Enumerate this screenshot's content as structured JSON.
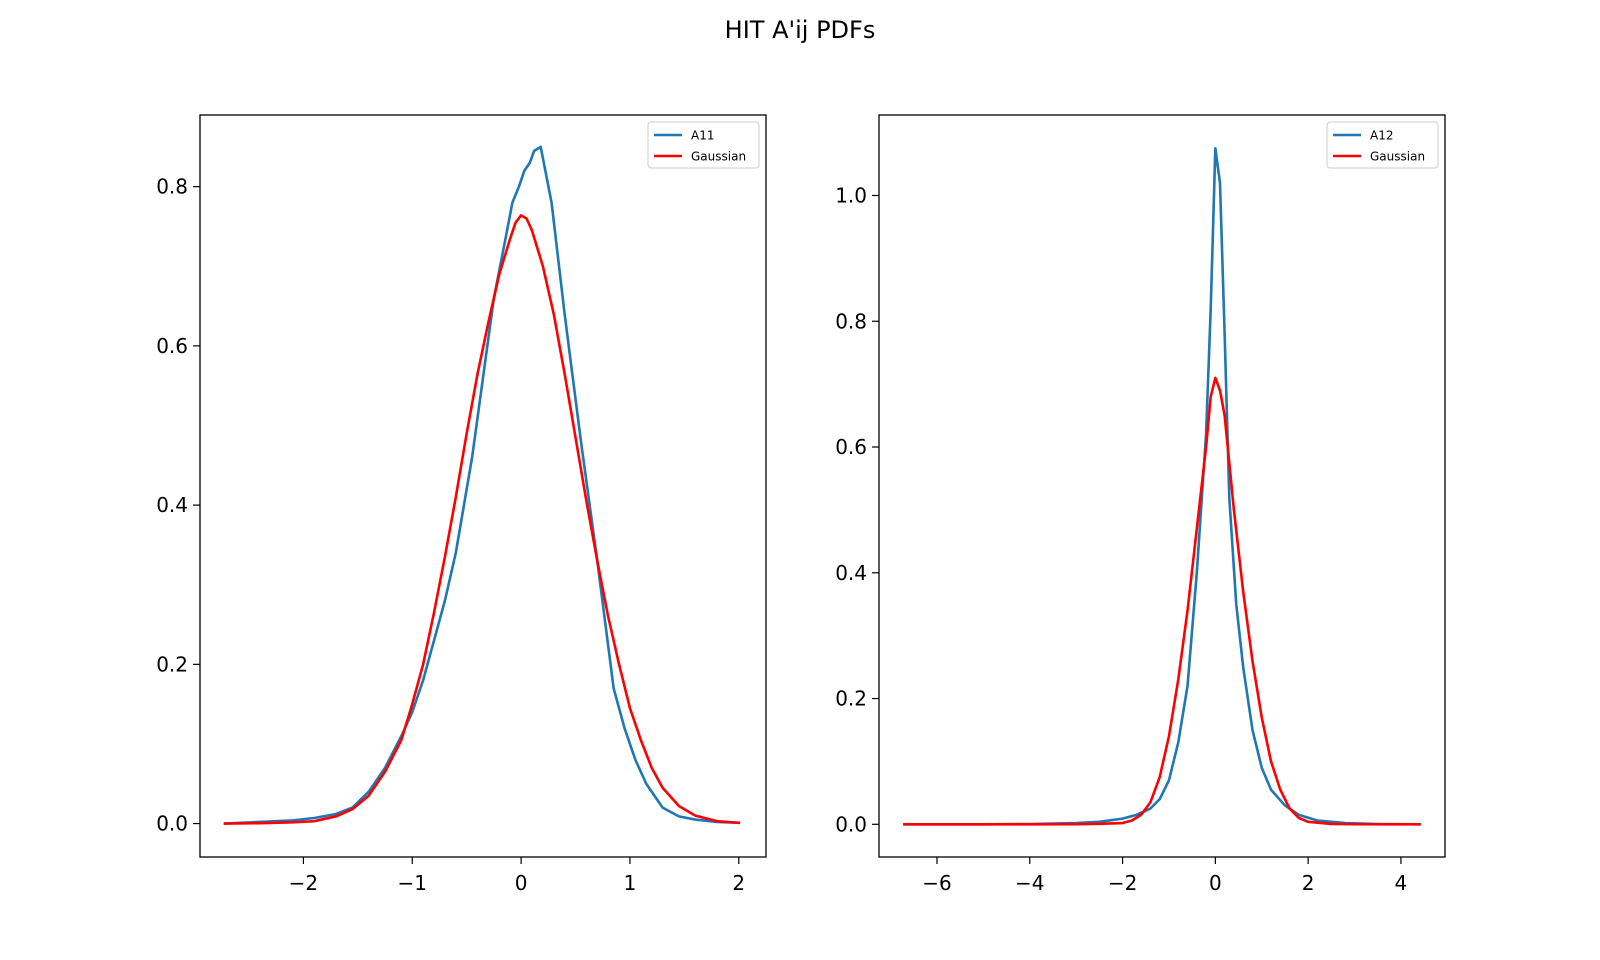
{
  "figure": {
    "suptitle": "HIT A'ij PDFs"
  },
  "chart_data": [
    {
      "type": "line",
      "title": "",
      "xlabel": "",
      "ylabel": "",
      "xlim": [
        -2.95,
        2.25
      ],
      "ylim": [
        -0.042,
        0.89
      ],
      "xticks": [
        -2,
        -1,
        0,
        1,
        2
      ],
      "xtick_labels": [
        "−2",
        "−1",
        "0",
        "1",
        "2"
      ],
      "yticks": [
        0.0,
        0.2,
        0.4,
        0.6,
        0.8
      ],
      "ytick_labels": [
        "0.0",
        "0.2",
        "0.4",
        "0.6",
        "0.8"
      ],
      "grid": false,
      "legend_position": "top-right",
      "series": [
        {
          "name": "A11",
          "color": "#1f77b4",
          "x": [
            -2.72,
            -2.4,
            -2.1,
            -1.9,
            -1.7,
            -1.55,
            -1.4,
            -1.25,
            -1.1,
            -1.0,
            -0.9,
            -0.8,
            -0.7,
            -0.6,
            -0.55,
            -0.45,
            -0.35,
            -0.25,
            -0.15,
            -0.08,
            -0.02,
            0.03,
            0.08,
            0.12,
            0.18,
            0.28,
            0.4,
            0.55,
            0.7,
            0.85,
            0.95,
            1.05,
            1.15,
            1.3,
            1.45,
            1.6,
            1.8,
            2.0
          ],
          "y": [
            0.0,
            0.002,
            0.004,
            0.007,
            0.012,
            0.02,
            0.04,
            0.07,
            0.11,
            0.14,
            0.18,
            0.23,
            0.28,
            0.34,
            0.38,
            0.46,
            0.56,
            0.66,
            0.73,
            0.78,
            0.8,
            0.82,
            0.83,
            0.845,
            0.85,
            0.78,
            0.64,
            0.48,
            0.33,
            0.17,
            0.12,
            0.08,
            0.05,
            0.02,
            0.009,
            0.005,
            0.002,
            0.001
          ]
        },
        {
          "name": "Gaussian",
          "color": "#ff0000",
          "x": [
            -2.72,
            -2.4,
            -2.1,
            -1.9,
            -1.7,
            -1.55,
            -1.4,
            -1.25,
            -1.1,
            -1.0,
            -0.9,
            -0.8,
            -0.7,
            -0.6,
            -0.5,
            -0.4,
            -0.3,
            -0.2,
            -0.1,
            -0.05,
            0.0,
            0.05,
            0.1,
            0.2,
            0.3,
            0.4,
            0.5,
            0.6,
            0.7,
            0.8,
            0.9,
            1.0,
            1.1,
            1.2,
            1.3,
            1.45,
            1.6,
            1.8,
            2.0
          ],
          "y": [
            0.0,
            0.0005,
            0.0015,
            0.003,
            0.009,
            0.018,
            0.035,
            0.065,
            0.105,
            0.15,
            0.2,
            0.265,
            0.335,
            0.41,
            0.49,
            0.565,
            0.63,
            0.69,
            0.735,
            0.755,
            0.764,
            0.76,
            0.745,
            0.7,
            0.64,
            0.565,
            0.485,
            0.405,
            0.33,
            0.26,
            0.2,
            0.145,
            0.105,
            0.07,
            0.045,
            0.022,
            0.01,
            0.003,
            0.001
          ]
        }
      ]
    },
    {
      "type": "line",
      "title": "",
      "xlabel": "",
      "ylabel": "",
      "xlim": [
        -7.25,
        4.95
      ],
      "ylim": [
        -0.052,
        1.128
      ],
      "xticks": [
        -6,
        -4,
        -2,
        0,
        2,
        4
      ],
      "xtick_labels": [
        "−6",
        "−4",
        "−2",
        "0",
        "2",
        "4"
      ],
      "yticks": [
        0.0,
        0.2,
        0.4,
        0.6,
        0.8,
        1.0
      ],
      "ytick_labels": [
        "0.0",
        "0.2",
        "0.4",
        "0.6",
        "0.8",
        "1.0"
      ],
      "grid": false,
      "legend_position": "top-right",
      "series": [
        {
          "name": "A12",
          "color": "#1f77b4",
          "x": [
            -6.7,
            -5.0,
            -4.0,
            -3.0,
            -2.5,
            -2.0,
            -1.7,
            -1.4,
            -1.2,
            -1.0,
            -0.8,
            -0.6,
            -0.4,
            -0.2,
            -0.1,
            0.0,
            0.1,
            0.2,
            0.3,
            0.45,
            0.6,
            0.8,
            1.0,
            1.2,
            1.5,
            1.8,
            2.2,
            2.8,
            3.5,
            4.4
          ],
          "y": [
            0.0,
            0.0,
            0.0005,
            0.002,
            0.004,
            0.009,
            0.015,
            0.025,
            0.04,
            0.07,
            0.13,
            0.22,
            0.4,
            0.62,
            0.82,
            1.075,
            1.02,
            0.78,
            0.52,
            0.35,
            0.25,
            0.15,
            0.09,
            0.055,
            0.03,
            0.015,
            0.006,
            0.002,
            0.0005,
            0.0
          ]
        },
        {
          "name": "Gaussian",
          "color": "#ff0000",
          "x": [
            -6.7,
            -5.0,
            -4.0,
            -3.0,
            -2.5,
            -2.0,
            -1.8,
            -1.6,
            -1.4,
            -1.2,
            -1.0,
            -0.8,
            -0.6,
            -0.4,
            -0.2,
            -0.1,
            0.0,
            0.1,
            0.2,
            0.4,
            0.6,
            0.8,
            1.0,
            1.2,
            1.4,
            1.6,
            1.8,
            2.0,
            2.5,
            3.0,
            4.4
          ],
          "y": [
            0.0,
            0.0,
            0.0,
            0.0002,
            0.0008,
            0.002,
            0.006,
            0.015,
            0.035,
            0.075,
            0.14,
            0.23,
            0.34,
            0.47,
            0.6,
            0.68,
            0.71,
            0.69,
            0.65,
            0.5,
            0.37,
            0.26,
            0.17,
            0.1,
            0.055,
            0.025,
            0.01,
            0.004,
            0.0006,
            0.0001,
            0.0
          ]
        }
      ]
    }
  ]
}
